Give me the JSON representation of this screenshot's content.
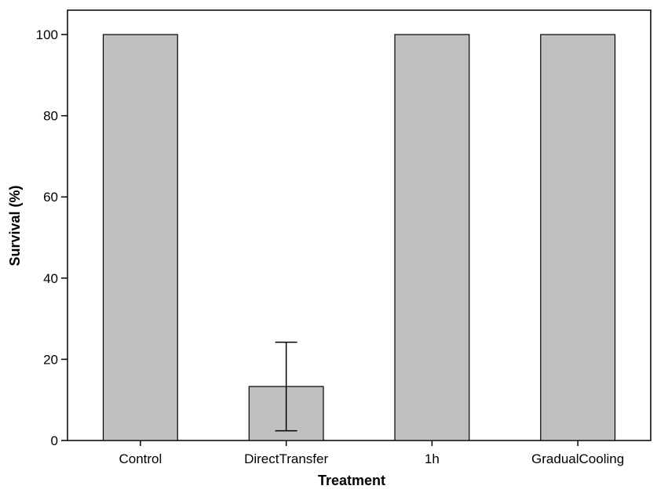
{
  "chart_data": {
    "type": "bar",
    "title": "",
    "xlabel": "Treatment",
    "ylabel": "Survival (%)",
    "categories": [
      "Control",
      "DirectTransfer",
      "1h",
      "GradualCooling"
    ],
    "values": [
      100,
      13.3,
      100,
      100
    ],
    "error_bars": [
      null,
      {
        "lower": 2.4,
        "upper": 24.2
      },
      null,
      null
    ],
    "ylim": [
      0,
      106
    ],
    "yticks": [
      0,
      20,
      40,
      60,
      80,
      100
    ],
    "bar_color": "#c0c0c0",
    "bar_edge_color": "#000000",
    "grid": false,
    "legend": false
  }
}
